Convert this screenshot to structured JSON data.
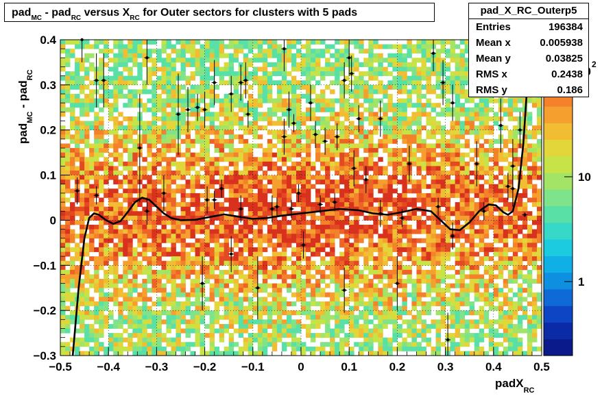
{
  "title": {
    "part1": "pad",
    "sub1": "MC",
    "part2": " - pad",
    "sub2": "RC",
    "part3": " versus X",
    "sub3": "RC",
    "part4": " for Outer sectors for clusters with 5 pads"
  },
  "stats": {
    "name": "pad_X_RC_Outerp5",
    "rows": [
      {
        "key": "Entries",
        "value": "196384"
      },
      {
        "key": "Mean x",
        "value": "0.005938"
      },
      {
        "key": "Mean y",
        "value": "0.03825"
      },
      {
        "key": "RMS x",
        "value": "0.2438"
      },
      {
        "key": "RMS y",
        "value": "0.186"
      }
    ]
  },
  "axis_labels": {
    "x_main": "padX",
    "x_sub": "RC",
    "y_main1": "pad",
    "y_sub1": "MC",
    "y_main2": " - pad",
    "y_sub2": "RC"
  },
  "colorbar": {
    "tick_labels": [
      "1",
      "10",
      "10"
    ],
    "exponent_fragment": "2",
    "colors": [
      "#0a1a8a",
      "#0b2aa6",
      "#0d45c4",
      "#0f6ad8",
      "#0e8fe0",
      "#10b0e6",
      "#1dcbe0",
      "#36d8c8",
      "#58e0a6",
      "#7ee38a",
      "#a3e466",
      "#c6e347",
      "#e2d63a",
      "#f1bd33",
      "#f59f2e",
      "#f4822a",
      "#ee6426",
      "#e44a22",
      "#d8321e"
    ]
  },
  "chart_data": {
    "type": "heatmap",
    "xlim": [
      -0.5,
      0.5
    ],
    "ylim": [
      -0.3,
      0.4
    ],
    "x_ticks": [
      -0.5,
      -0.4,
      -0.3,
      -0.2,
      -0.1,
      0,
      0.1,
      0.2,
      0.3,
      0.4,
      0.5
    ],
    "x_tick_labels": [
      "−0.5",
      "−0.4",
      "−0.3",
      "−0.2",
      "−0.1",
      "0",
      "0.1",
      "0.2",
      "0.3",
      "0.4",
      "0.5"
    ],
    "y_ticks": [
      -0.3,
      -0.2,
      -0.1,
      0,
      0.1,
      0.2,
      0.3,
      0.4
    ],
    "y_tick_labels": [
      "−0.3",
      "−0.2",
      "−0.1",
      "0",
      "0.1",
      "0.2",
      "0.3",
      "0.4"
    ],
    "grid": true,
    "z_log_scale": true,
    "profile_points": [
      {
        "x": -0.465,
        "y": 0.065,
        "err": 0.03
      },
      {
        "x": -0.455,
        "y": 0.4,
        "err": 0.05
      },
      {
        "x": -0.425,
        "y": 0.055,
        "err": 0.02
      },
      {
        "x": -0.425,
        "y": 0.31,
        "err": 0.06
      },
      {
        "x": -0.41,
        "y": 0.31,
        "err": 0.06
      },
      {
        "x": -0.335,
        "y": 0.16,
        "err": 0.12
      },
      {
        "x": -0.32,
        "y": 0.36,
        "err": 0.06
      },
      {
        "x": -0.32,
        "y": 0.02,
        "err": 0.03
      },
      {
        "x": -0.285,
        "y": 0.06,
        "err": 0.04
      },
      {
        "x": -0.255,
        "y": 0.235,
        "err": 0.09
      },
      {
        "x": -0.235,
        "y": 0.245,
        "err": 0.05
      },
      {
        "x": -0.215,
        "y": 0.25,
        "err": 0.03
      },
      {
        "x": -0.205,
        "y": -0.14,
        "err": 0.06
      },
      {
        "x": -0.2,
        "y": 0.245,
        "err": 0.04
      },
      {
        "x": -0.195,
        "y": 0.045,
        "err": 0.03
      },
      {
        "x": -0.18,
        "y": 0.045,
        "err": 0.02
      },
      {
        "x": -0.18,
        "y": 0.305,
        "err": 0.05
      },
      {
        "x": -0.165,
        "y": 0.07,
        "err": 0.02
      },
      {
        "x": -0.145,
        "y": 0.28,
        "err": 0.04
      },
      {
        "x": -0.145,
        "y": -0.075,
        "err": 0.04
      },
      {
        "x": -0.125,
        "y": 0.025,
        "err": 0.03
      },
      {
        "x": -0.125,
        "y": 0.305,
        "err": 0.04
      },
      {
        "x": -0.115,
        "y": 0.31,
        "err": 0.04
      },
      {
        "x": -0.11,
        "y": 0.235,
        "err": 0.03
      },
      {
        "x": -0.09,
        "y": -0.15,
        "err": 0.07
      },
      {
        "x": -0.06,
        "y": 0.025,
        "err": 0.03
      },
      {
        "x": -0.05,
        "y": 0.03,
        "err": 0.02
      },
      {
        "x": -0.035,
        "y": 0.38,
        "err": 0.05
      },
      {
        "x": -0.035,
        "y": 0.185,
        "err": 0.04
      },
      {
        "x": -0.025,
        "y": 0.245,
        "err": 0.04
      },
      {
        "x": -0.02,
        "y": 0.025,
        "err": 0.02
      },
      {
        "x": -0.015,
        "y": 0.215,
        "err": 0.02
      },
      {
        "x": -0.005,
        "y": 0.06,
        "err": 0.02
      },
      {
        "x": 0.005,
        "y": -0.055,
        "err": 0.03
      },
      {
        "x": 0.02,
        "y": 0.26,
        "err": 0.04
      },
      {
        "x": 0.03,
        "y": 0.19,
        "err": 0.03
      },
      {
        "x": 0.04,
        "y": 0.035,
        "err": 0.02
      },
      {
        "x": 0.05,
        "y": 0.175,
        "err": 0.03
      },
      {
        "x": 0.07,
        "y": 0.04,
        "err": 0.02
      },
      {
        "x": 0.075,
        "y": 0.185,
        "err": 0.03
      },
      {
        "x": 0.09,
        "y": -0.155,
        "err": 0.05
      },
      {
        "x": 0.09,
        "y": 0.31,
        "err": 0.04
      },
      {
        "x": 0.1,
        "y": 0.36,
        "err": 0.04
      },
      {
        "x": 0.105,
        "y": 0.325,
        "err": 0.04
      },
      {
        "x": 0.11,
        "y": 0.115,
        "err": 0.04
      },
      {
        "x": 0.12,
        "y": 0.225,
        "err": 0.03
      },
      {
        "x": 0.135,
        "y": 0.09,
        "err": 0.03
      },
      {
        "x": 0.165,
        "y": 0.015,
        "err": 0.03
      },
      {
        "x": 0.165,
        "y": 0.225,
        "err": 0.04
      },
      {
        "x": 0.2,
        "y": -0.14,
        "err": 0.06
      },
      {
        "x": 0.21,
        "y": 0.005,
        "err": 0.02
      },
      {
        "x": 0.225,
        "y": 0.125,
        "err": 0.04
      },
      {
        "x": 0.275,
        "y": 0.37,
        "err": 0.04
      },
      {
        "x": 0.285,
        "y": 0.03,
        "err": 0.02
      },
      {
        "x": 0.295,
        "y": 0.305,
        "err": 0.05
      },
      {
        "x": 0.305,
        "y": -0.265,
        "err": 0.06
      },
      {
        "x": 0.315,
        "y": 0.26,
        "err": 0.04
      },
      {
        "x": 0.315,
        "y": -0.035,
        "err": 0.03
      },
      {
        "x": 0.365,
        "y": 0.125,
        "err": 0.05
      },
      {
        "x": 0.38,
        "y": 0.02,
        "err": 0.02
      },
      {
        "x": 0.415,
        "y": 0.21,
        "err": 0.06
      },
      {
        "x": 0.43,
        "y": 0.075,
        "err": 0.03
      },
      {
        "x": 0.44,
        "y": 0.07,
        "err": 0.04
      },
      {
        "x": 0.44,
        "y": 0.12,
        "err": 0.06
      },
      {
        "x": 0.455,
        "y": 0.2,
        "err": 0.04
      },
      {
        "x": 0.465,
        "y": 0.012,
        "err": 0.005
      }
    ],
    "fit_curve": [
      {
        "x": -0.475,
        "y": -0.31
      },
      {
        "x": -0.462,
        "y": -0.15
      },
      {
        "x": -0.45,
        "y": -0.04
      },
      {
        "x": -0.44,
        "y": 0.005
      },
      {
        "x": -0.43,
        "y": 0.015
      },
      {
        "x": -0.42,
        "y": 0.012
      },
      {
        "x": -0.405,
        "y": 0.0
      },
      {
        "x": -0.39,
        "y": -0.008
      },
      {
        "x": -0.375,
        "y": -0.002
      },
      {
        "x": -0.36,
        "y": 0.018
      },
      {
        "x": -0.345,
        "y": 0.04
      },
      {
        "x": -0.33,
        "y": 0.05
      },
      {
        "x": -0.315,
        "y": 0.045
      },
      {
        "x": -0.3,
        "y": 0.03
      },
      {
        "x": -0.285,
        "y": 0.015
      },
      {
        "x": -0.27,
        "y": 0.005
      },
      {
        "x": -0.25,
        "y": 0.0
      },
      {
        "x": -0.22,
        "y": 0.001
      },
      {
        "x": -0.19,
        "y": 0.007
      },
      {
        "x": -0.16,
        "y": 0.013
      },
      {
        "x": -0.13,
        "y": 0.008
      },
      {
        "x": -0.1,
        "y": 0.003
      },
      {
        "x": -0.07,
        "y": 0.005
      },
      {
        "x": -0.04,
        "y": 0.01
      },
      {
        "x": 0.0,
        "y": 0.015
      },
      {
        "x": 0.04,
        "y": 0.02
      },
      {
        "x": 0.08,
        "y": 0.025
      },
      {
        "x": 0.12,
        "y": 0.022
      },
      {
        "x": 0.15,
        "y": 0.015
      },
      {
        "x": 0.18,
        "y": 0.012
      },
      {
        "x": 0.21,
        "y": 0.018
      },
      {
        "x": 0.24,
        "y": 0.025
      },
      {
        "x": 0.27,
        "y": 0.02
      },
      {
        "x": 0.29,
        "y": 0.0
      },
      {
        "x": 0.31,
        "y": -0.02
      },
      {
        "x": 0.33,
        "y": -0.022
      },
      {
        "x": 0.35,
        "y": -0.005
      },
      {
        "x": 0.37,
        "y": 0.02
      },
      {
        "x": 0.39,
        "y": 0.035
      },
      {
        "x": 0.405,
        "y": 0.033
      },
      {
        "x": 0.42,
        "y": 0.018
      },
      {
        "x": 0.43,
        "y": 0.012
      },
      {
        "x": 0.44,
        "y": 0.02
      },
      {
        "x": 0.452,
        "y": 0.07
      },
      {
        "x": 0.462,
        "y": 0.17
      },
      {
        "x": 0.472,
        "y": 0.33
      },
      {
        "x": 0.478,
        "y": 0.42
      }
    ]
  }
}
